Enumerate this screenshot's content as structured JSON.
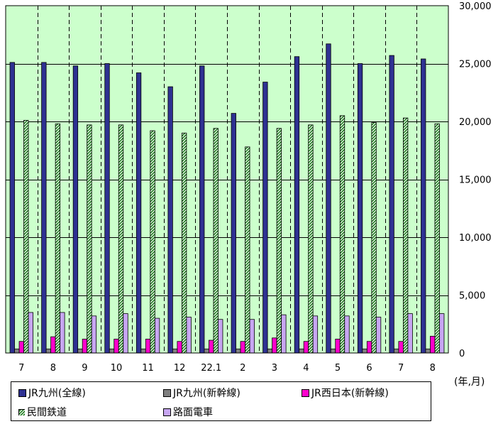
{
  "chart_data": {
    "type": "bar",
    "categories": [
      "7",
      "8",
      "9",
      "10",
      "11",
      "12",
      "22.1",
      "2",
      "3",
      "4",
      "5",
      "6",
      "7",
      "8"
    ],
    "series": [
      {
        "name": "JR九州(全線)",
        "color": "#2e3192",
        "values": [
          25100,
          25100,
          24800,
          25000,
          24200,
          23000,
          24800,
          20700,
          23400,
          25600,
          26700,
          25000,
          25700,
          25400
        ]
      },
      {
        "name": "JR九州(新幹線)",
        "color": "#808080",
        "values": [
          350,
          350,
          350,
          350,
          350,
          350,
          350,
          350,
          350,
          350,
          350,
          350,
          350,
          350
        ]
      },
      {
        "name": "JR西日本(新幹線)",
        "color": "#ff00cc",
        "values": [
          1000,
          1400,
          1200,
          1200,
          1200,
          1000,
          1100,
          1000,
          1300,
          1000,
          1200,
          1000,
          1000,
          1450
        ]
      },
      {
        "name": "民間鉄道",
        "color": "#1a7a1a",
        "pattern": "hatched",
        "values": [
          20100,
          19800,
          19700,
          19700,
          19200,
          19000,
          19400,
          17800,
          19400,
          19700,
          20500,
          19900,
          20300,
          19800
        ]
      },
      {
        "name": "路面電車",
        "color": "#c7a6f2",
        "values": [
          3500,
          3500,
          3200,
          3400,
          3000,
          3100,
          2900,
          2900,
          3300,
          3200,
          3200,
          3100,
          3400,
          3400
        ]
      }
    ],
    "y_ticks": [
      "0",
      "5,000",
      "10,000",
      "15,000",
      "20,000",
      "25,000",
      "30,000"
    ],
    "ylim": [
      0,
      30000
    ],
    "xlabel": "",
    "ylabel": "",
    "unit_label": "(年,月)",
    "plot_background": "#ccffcc",
    "grid": {
      "horizontal": true,
      "vertical_dashed": true
    },
    "legend_position": "bottom"
  }
}
